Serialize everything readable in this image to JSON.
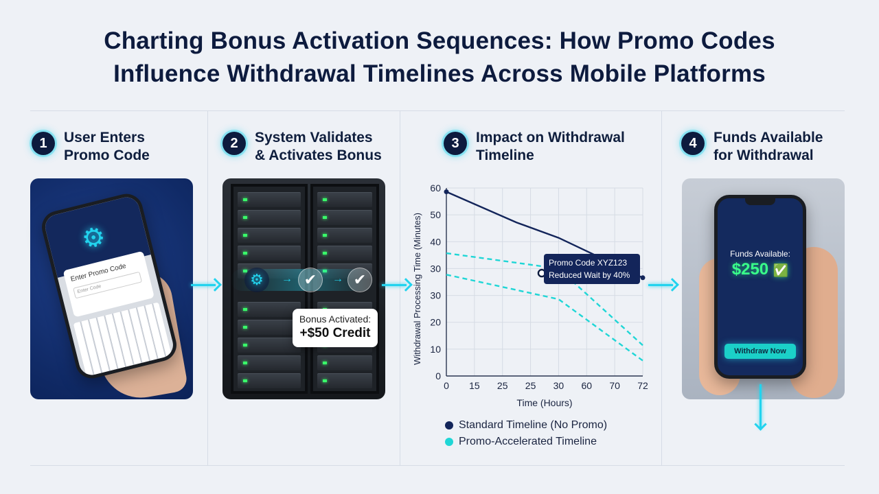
{
  "title": {
    "line1": "Charting Bonus Activation Sequences: How Promo Codes",
    "line2": "Influence Withdrawal Timelines Across Mobile Platforms"
  },
  "steps": [
    {
      "number": "1",
      "label": "User Enters\nPromo Code"
    },
    {
      "number": "2",
      "label": "System Validates\n& Activates Bonus"
    },
    {
      "number": "3",
      "label": "Impact on Withdrawal\nTimeline"
    },
    {
      "number": "4",
      "label": "Funds Available\nfor Withdrawal"
    }
  ],
  "step1": {
    "phone_title": "Enter Promo Code",
    "input_placeholder": "Enter Code"
  },
  "step2": {
    "bonus_line1": "Bonus Activated:",
    "bonus_line2": "+$50 Credit"
  },
  "step4": {
    "funds_label": "Funds Available:",
    "funds_value": "$250",
    "button_label": "Withdraw Now"
  },
  "colors": {
    "navy": "#0d1b3e",
    "cyan": "#22d3ee",
    "standard": "#13255a",
    "promo": "#1fd6d6"
  },
  "chart_data": {
    "type": "line",
    "xlabel": "Time (Hours)",
    "ylabel": "Withdrawal Processing Time (Minutes)",
    "x_ticks": [
      "0",
      "15",
      "25",
      "25",
      "30",
      "60",
      "70",
      "72"
    ],
    "y_ticks": [
      "0",
      "10",
      "20",
      "30",
      "30",
      "40",
      "50",
      "60",
      "60"
    ],
    "y_ticks_order_note": "",
    "series": [
      {
        "name": "Standard Timeline (No Promo)",
        "style": "solid",
        "color": "#13255a",
        "points": [
          [
            0,
            60
          ],
          [
            25,
            50
          ],
          [
            30,
            45
          ],
          [
            72,
            32
          ]
        ]
      },
      {
        "name": "Promo-Accelerated Timeline",
        "style": "dashed",
        "color": "#1fd6d6",
        "points": [
          [
            0,
            40
          ],
          [
            30,
            35
          ],
          [
            72,
            10
          ]
        ]
      },
      {
        "name": "Promo-Accelerated Timeline",
        "style": "dashed",
        "color": "#1fd6d6",
        "points": [
          [
            0,
            33
          ],
          [
            30,
            25
          ],
          [
            72,
            5
          ]
        ]
      }
    ],
    "annotation": {
      "line1": "Promo Code XYZ123",
      "line2": "Reduced Wait by 40%"
    },
    "legend": [
      "Standard Timeline (No Promo)",
      "Promo-Accelerated Timeline"
    ],
    "grid": true
  }
}
